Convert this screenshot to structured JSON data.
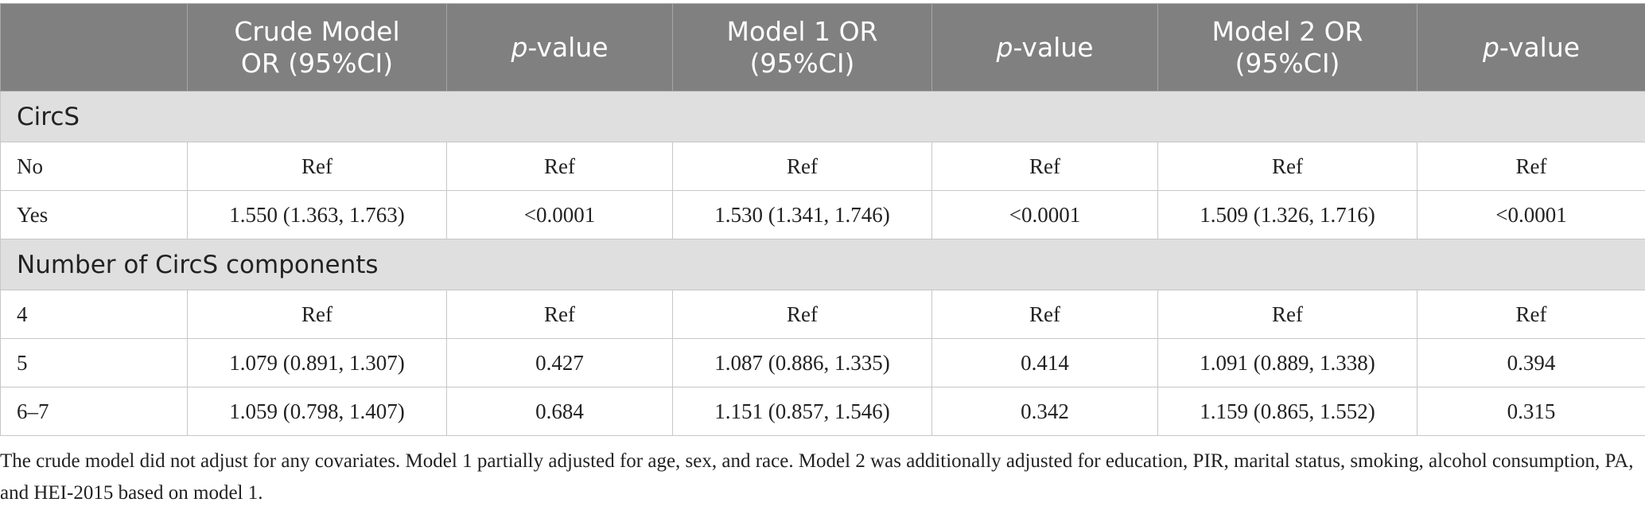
{
  "header": {
    "columns": [
      {
        "lines": [
          ""
        ]
      },
      {
        "lines": [
          "Crude Model",
          "OR (95%CI)"
        ]
      },
      {
        "prefix_italic": "p",
        "suffix": "-value"
      },
      {
        "lines": [
          "Model 1 OR",
          "(95%CI)"
        ]
      },
      {
        "prefix_italic": "p",
        "suffix": "-value"
      },
      {
        "lines": [
          "Model 2 OR",
          "(95%CI)"
        ]
      },
      {
        "prefix_italic": "p",
        "suffix": "-value"
      }
    ]
  },
  "sections": [
    {
      "title": "CircS",
      "rows": [
        {
          "label": "No",
          "cells": [
            "Ref",
            "Ref",
            "Ref",
            "Ref",
            "Ref",
            "Ref"
          ]
        },
        {
          "label": "Yes",
          "cells": [
            "1.550 (1.363, 1.763)",
            "<0.0001",
            "1.530 (1.341, 1.746)",
            "<0.0001",
            "1.509 (1.326, 1.716)",
            "<0.0001"
          ]
        }
      ]
    },
    {
      "title": "Number of CircS components",
      "rows": [
        {
          "label": "4",
          "cells": [
            "Ref",
            "Ref",
            "Ref",
            "Ref",
            "Ref",
            "Ref"
          ]
        },
        {
          "label": "5",
          "cells": [
            "1.079 (0.891, 1.307)",
            "0.427",
            "1.087 (0.886, 1.335)",
            "0.414",
            "1.091 (0.889, 1.338)",
            "0.394"
          ]
        },
        {
          "label": "6–7",
          "cells": [
            "1.059 (0.798, 1.407)",
            "0.684",
            "1.151 (0.857, 1.546)",
            "0.342",
            "1.159 (0.865, 1.552)",
            "0.315"
          ]
        }
      ]
    }
  ],
  "footnote": "The crude model did not adjust for any covariates. Model 1 partially adjusted for age, sex, and race. Model 2 was additionally adjusted for education, PIR, marital status, smoking, alcohol consumption, PA, and HEI-2015 based on model 1.",
  "colors": {
    "header_bg": "#808080",
    "section_bg": "#e0dfe0",
    "border": "#c7c7c7"
  }
}
